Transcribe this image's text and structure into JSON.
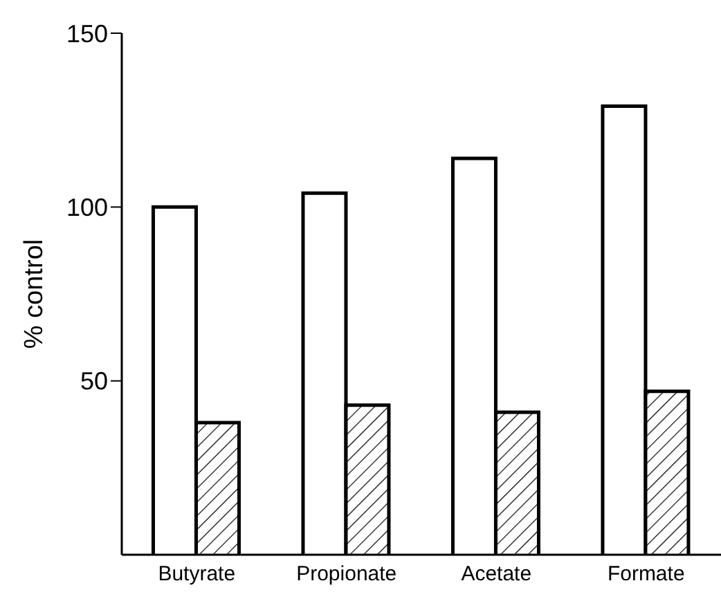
{
  "chart_data": {
    "type": "bar",
    "ylabel": "% control",
    "categories": [
      "Butyrate",
      "Propionate",
      "Acetate",
      "Formate"
    ],
    "series": [
      {
        "color": "#ffffff",
        "values": [
          100,
          104,
          114,
          129
        ]
      },
      {
        "color": "#000000",
        "values": [
          38,
          43,
          41,
          47
        ]
      }
    ],
    "ylim": [
      0,
      150
    ],
    "yticks": [
      50,
      100,
      150
    ],
    "grid": false,
    "legend": false
  }
}
